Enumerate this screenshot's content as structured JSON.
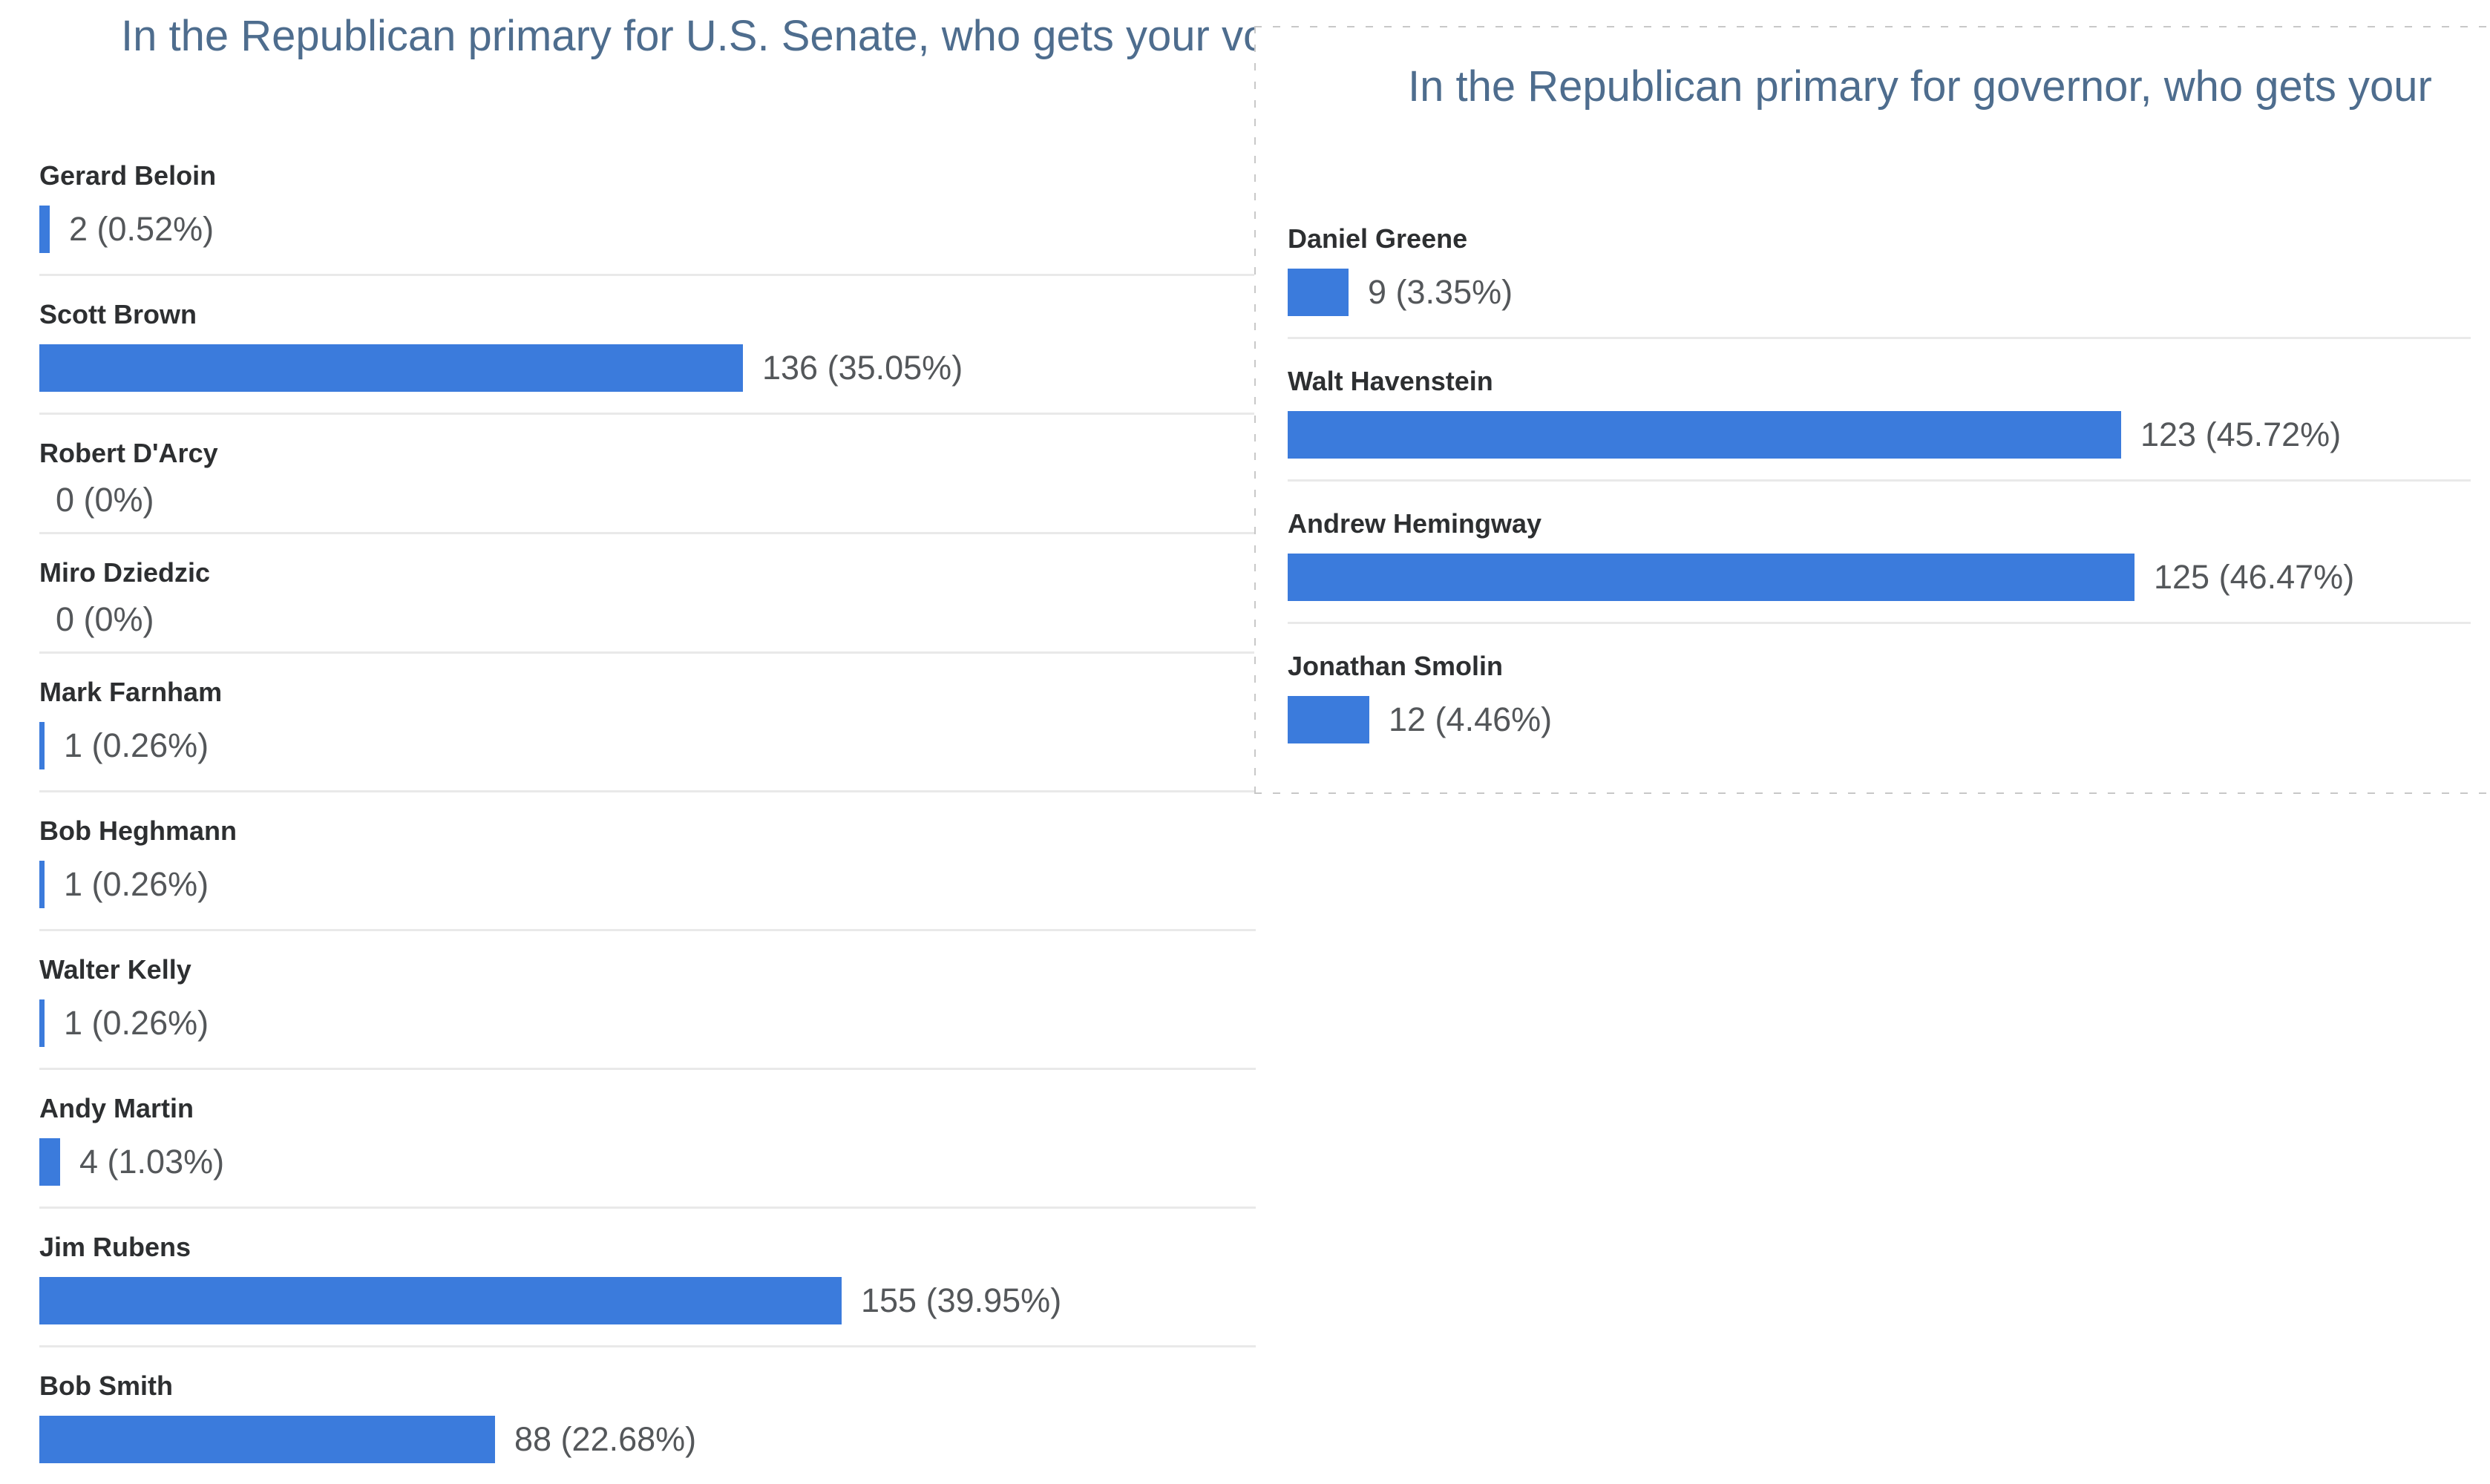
{
  "colors": {
    "bar": "#3b7bdc",
    "title_text": "#4e6d8e",
    "candidate_name": "#2d2f31",
    "value_text": "#54575a",
    "row_divider": "#e9e9e9",
    "panel_dashed_border": "#c8c8c8",
    "background": "#ffffff"
  },
  "chart_data": [
    {
      "type": "bar",
      "orientation": "horizontal",
      "title": "In the Republican primary for U.S. Senate, who gets your vo",
      "legend": "none",
      "grid": "off",
      "value_label_position": "right-of-bar",
      "categories": [
        "Gerard Beloin",
        "Scott Brown",
        "Robert D'Arcy",
        "Miro Dziedzic",
        "Mark Farnham",
        "Bob Heghmann",
        "Walter Kelly",
        "Andy Martin",
        "Jim Rubens",
        "Bob Smith"
      ],
      "values": [
        2,
        136,
        0,
        0,
        1,
        1,
        1,
        4,
        155,
        88
      ],
      "rows": [
        {
          "name": "Gerard Beloin",
          "count": 2,
          "percent": 0.52,
          "value_label": "2 (0.52%)"
        },
        {
          "name": "Scott Brown",
          "count": 136,
          "percent": 35.05,
          "value_label": "136 (35.05%)"
        },
        {
          "name": "Robert D'Arcy",
          "count": 0,
          "percent": 0,
          "value_label": "0 (0%)"
        },
        {
          "name": "Miro Dziedzic",
          "count": 0,
          "percent": 0,
          "value_label": "0 (0%)"
        },
        {
          "name": "Mark Farnham",
          "count": 1,
          "percent": 0.26,
          "value_label": "1 (0.26%)"
        },
        {
          "name": "Bob Heghmann",
          "count": 1,
          "percent": 0.26,
          "value_label": "1 (0.26%)"
        },
        {
          "name": "Walter Kelly",
          "count": 1,
          "percent": 0.26,
          "value_label": "1 (0.26%)"
        },
        {
          "name": "Andy Martin",
          "count": 4,
          "percent": 1.03,
          "value_label": "4 (1.03%)"
        },
        {
          "name": "Jim Rubens",
          "count": 155,
          "percent": 39.95,
          "value_label": "155 (39.95%)"
        },
        {
          "name": "Bob Smith",
          "count": 88,
          "percent": 22.68,
          "value_label": "88 (22.68%)"
        }
      ]
    },
    {
      "type": "bar",
      "orientation": "horizontal",
      "title": "In the Republican primary for governor, who gets your",
      "legend": "none",
      "grid": "off",
      "value_label_position": "right-of-bar",
      "categories": [
        "Daniel Greene",
        "Walt Havenstein",
        "Andrew Hemingway",
        "Jonathan Smolin"
      ],
      "values": [
        9,
        123,
        125,
        12
      ],
      "rows": [
        {
          "name": "Daniel Greene",
          "count": 9,
          "percent": 3.35,
          "value_label": "9 (3.35%)"
        },
        {
          "name": "Walt Havenstein",
          "count": 123,
          "percent": 45.72,
          "value_label": "123 (45.72%)"
        },
        {
          "name": "Andrew Hemingway",
          "count": 125,
          "percent": 46.47,
          "value_label": "125 (46.47%)"
        },
        {
          "name": "Jonathan Smolin",
          "count": 12,
          "percent": 4.46,
          "value_label": "12 (4.46%)"
        }
      ]
    }
  ]
}
